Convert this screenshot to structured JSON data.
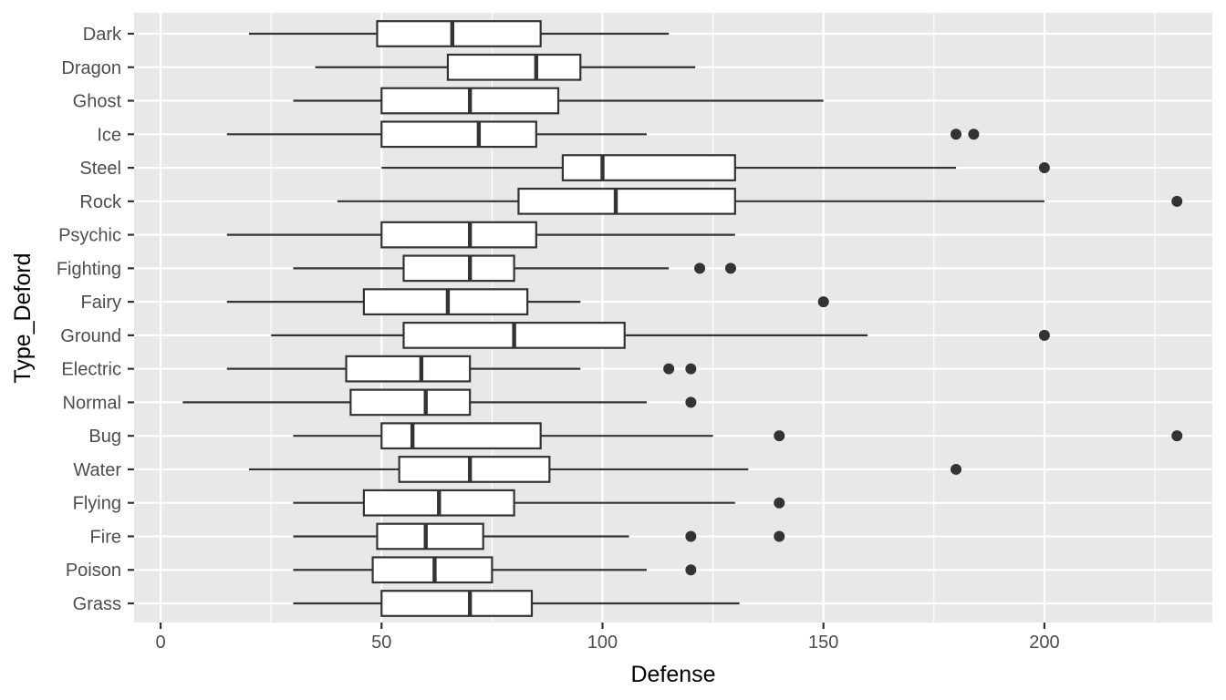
{
  "chart_data": {
    "type": "boxplot",
    "orientation": "horizontal",
    "xlabel": "Defense",
    "ylabel": "Type_Deford",
    "xlim": [
      -6,
      238
    ],
    "x_ticks": [
      0,
      50,
      100,
      150,
      200
    ],
    "x_tick_labels": [
      "0",
      "50",
      "100",
      "150",
      "200"
    ],
    "grid": true,
    "categories": [
      "Dark",
      "Dragon",
      "Ghost",
      "Ice",
      "Steel",
      "Rock",
      "Psychic",
      "Fighting",
      "Fairy",
      "Ground",
      "Electric",
      "Normal",
      "Bug",
      "Water",
      "Flying",
      "Fire",
      "Poison",
      "Grass"
    ],
    "boxes": [
      {
        "category": "Dark",
        "whisker_low": 20,
        "q1": 49,
        "median": 66,
        "q3": 86,
        "whisker_high": 115,
        "outliers": []
      },
      {
        "category": "Dragon",
        "whisker_low": 35,
        "q1": 65,
        "median": 85,
        "q3": 95,
        "whisker_high": 121,
        "outliers": []
      },
      {
        "category": "Ghost",
        "whisker_low": 30,
        "q1": 50,
        "median": 70,
        "q3": 90,
        "whisker_high": 150,
        "outliers": []
      },
      {
        "category": "Ice",
        "whisker_low": 15,
        "q1": 50,
        "median": 72,
        "q3": 85,
        "whisker_high": 110,
        "outliers": [
          180,
          184
        ]
      },
      {
        "category": "Steel",
        "whisker_low": 50,
        "q1": 91,
        "median": 100,
        "q3": 130,
        "whisker_high": 180,
        "outliers": [
          200
        ]
      },
      {
        "category": "Rock",
        "whisker_low": 40,
        "q1": 81,
        "median": 103,
        "q3": 130,
        "whisker_high": 200,
        "outliers": [
          230
        ]
      },
      {
        "category": "Psychic",
        "whisker_low": 15,
        "q1": 50,
        "median": 70,
        "q3": 85,
        "whisker_high": 130,
        "outliers": []
      },
      {
        "category": "Fighting",
        "whisker_low": 30,
        "q1": 55,
        "median": 70,
        "q3": 80,
        "whisker_high": 115,
        "outliers": [
          122,
          129
        ]
      },
      {
        "category": "Fairy",
        "whisker_low": 15,
        "q1": 46,
        "median": 65,
        "q3": 83,
        "whisker_high": 95,
        "outliers": [
          150
        ]
      },
      {
        "category": "Ground",
        "whisker_low": 25,
        "q1": 55,
        "median": 80,
        "q3": 105,
        "whisker_high": 160,
        "outliers": [
          200
        ]
      },
      {
        "category": "Electric",
        "whisker_low": 15,
        "q1": 42,
        "median": 59,
        "q3": 70,
        "whisker_high": 95,
        "outliers": [
          115,
          120
        ]
      },
      {
        "category": "Normal",
        "whisker_low": 5,
        "q1": 43,
        "median": 60,
        "q3": 70,
        "whisker_high": 110,
        "outliers": [
          120
        ]
      },
      {
        "category": "Bug",
        "whisker_low": 30,
        "q1": 50,
        "median": 57,
        "q3": 86,
        "whisker_high": 125,
        "outliers": [
          140,
          230
        ]
      },
      {
        "category": "Water",
        "whisker_low": 20,
        "q1": 54,
        "median": 70,
        "q3": 88,
        "whisker_high": 133,
        "outliers": [
          180
        ]
      },
      {
        "category": "Flying",
        "whisker_low": 30,
        "q1": 46,
        "median": 63,
        "q3": 80,
        "whisker_high": 130,
        "outliers": [
          140
        ]
      },
      {
        "category": "Fire",
        "whisker_low": 30,
        "q1": 49,
        "median": 60,
        "q3": 73,
        "whisker_high": 106,
        "outliers": [
          120,
          140
        ]
      },
      {
        "category": "Poison",
        "whisker_low": 30,
        "q1": 48,
        "median": 62,
        "q3": 75,
        "whisker_high": 110,
        "outliers": [
          120
        ]
      },
      {
        "category": "Grass",
        "whisker_low": 30,
        "q1": 50,
        "median": 70,
        "q3": 84,
        "whisker_high": 131,
        "outliers": []
      }
    ],
    "colors": {
      "panel": "#e8e8e8",
      "grid": "#ffffff",
      "box_fill": "#ffffff",
      "box_stroke": "#333333",
      "point": "#333333"
    }
  }
}
